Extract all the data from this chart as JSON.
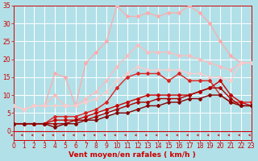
{
  "background_color": "#b2e0e8",
  "grid_color": "#c8d8dc",
  "xlabel": "Vent moyen/en rafales ( km/h )",
  "xlabel_color": "#cc0000",
  "tick_color": "#cc0000",
  "xlim": [
    0,
    23
  ],
  "ylim": [
    -2,
    35
  ],
  "xticks": [
    0,
    1,
    2,
    3,
    4,
    5,
    6,
    7,
    8,
    9,
    10,
    11,
    12,
    13,
    14,
    15,
    16,
    17,
    18,
    19,
    20,
    21,
    22,
    23
  ],
  "yticks": [
    0,
    5,
    10,
    15,
    20,
    25,
    30,
    35
  ],
  "lines": [
    {
      "x": [
        0,
        1,
        2,
        3,
        4,
        5,
        6,
        7,
        8,
        9,
        10,
        11,
        12,
        13,
        14,
        15,
        16,
        17,
        18,
        19,
        20,
        21,
        22,
        23
      ],
      "y": [
        7,
        6,
        7,
        7,
        16,
        15,
        7,
        19,
        22,
        25,
        35,
        32,
        32,
        33,
        32,
        33,
        33,
        35,
        33,
        30,
        25,
        21,
        19,
        19
      ],
      "color": "#ffaaaa",
      "linewidth": 0.9,
      "marker": "D",
      "markersize": 2.0
    },
    {
      "x": [
        0,
        1,
        2,
        3,
        4,
        5,
        6,
        7,
        8,
        9,
        10,
        11,
        12,
        13,
        14,
        15,
        16,
        17,
        18,
        19,
        20,
        21,
        22,
        23
      ],
      "y": [
        7,
        6,
        7,
        7,
        10,
        7,
        7,
        9,
        11,
        14,
        18,
        21,
        24,
        22,
        22,
        22,
        21,
        21,
        20,
        19,
        18,
        17,
        19,
        19
      ],
      "color": "#ffbbbb",
      "linewidth": 0.9,
      "marker": "D",
      "markersize": 2.0
    },
    {
      "x": [
        0,
        1,
        2,
        3,
        4,
        5,
        6,
        7,
        8,
        9,
        10,
        11,
        12,
        13,
        14,
        15,
        16,
        17,
        18,
        19,
        20,
        21,
        22,
        23
      ],
      "y": [
        7,
        6,
        7,
        7,
        7,
        7,
        7,
        8,
        9,
        11,
        14,
        16,
        18,
        17,
        17,
        17,
        17,
        16,
        16,
        15,
        15,
        14,
        19,
        19
      ],
      "color": "#ffcccc",
      "linewidth": 0.9,
      "marker": "D",
      "markersize": 2.0
    },
    {
      "x": [
        0,
        1,
        2,
        3,
        4,
        5,
        6,
        7,
        8,
        9,
        10,
        11,
        12,
        13,
        14,
        15,
        16,
        17,
        18,
        19,
        20,
        21,
        22,
        23
      ],
      "y": [
        2,
        2,
        2,
        2,
        4,
        4,
        4,
        5,
        6,
        8,
        12,
        15,
        16,
        16,
        16,
        14,
        16,
        14,
        14,
        14,
        10,
        8,
        8,
        8
      ],
      "color": "#dd2222",
      "linewidth": 1.0,
      "marker": "D",
      "markersize": 2.0
    },
    {
      "x": [
        0,
        1,
        2,
        3,
        4,
        5,
        6,
        7,
        8,
        9,
        10,
        11,
        12,
        13,
        14,
        15,
        16,
        17,
        18,
        19,
        20,
        21,
        22,
        23
      ],
      "y": [
        2,
        2,
        2,
        2,
        3,
        3,
        3,
        4,
        5,
        6,
        7,
        8,
        9,
        10,
        10,
        10,
        10,
        10,
        11,
        12,
        14,
        10,
        8,
        7
      ],
      "color": "#cc0000",
      "linewidth": 1.0,
      "marker": "D",
      "markersize": 2.0
    },
    {
      "x": [
        0,
        1,
        2,
        3,
        4,
        5,
        6,
        7,
        8,
        9,
        10,
        11,
        12,
        13,
        14,
        15,
        16,
        17,
        18,
        19,
        20,
        21,
        22,
        23
      ],
      "y": [
        2,
        2,
        2,
        2,
        2,
        2,
        3,
        3,
        4,
        5,
        6,
        7,
        8,
        8,
        9,
        9,
        9,
        10,
        11,
        12,
        12,
        9,
        7,
        7
      ],
      "color": "#aa0000",
      "linewidth": 1.0,
      "marker": "D",
      "markersize": 2.0
    },
    {
      "x": [
        0,
        1,
        2,
        3,
        4,
        5,
        6,
        7,
        8,
        9,
        10,
        11,
        12,
        13,
        14,
        15,
        16,
        17,
        18,
        19,
        20,
        21,
        22,
        23
      ],
      "y": [
        2,
        2,
        2,
        2,
        1,
        2,
        2,
        3,
        3,
        4,
        5,
        5,
        6,
        7,
        7,
        8,
        8,
        9,
        9,
        10,
        10,
        8,
        7,
        7
      ],
      "color": "#880000",
      "linewidth": 1.0,
      "marker": "D",
      "markersize": 2.0
    }
  ],
  "arrow_color": "#cc0000",
  "axis_fontsize": 6.5,
  "tick_fontsize": 5.5
}
